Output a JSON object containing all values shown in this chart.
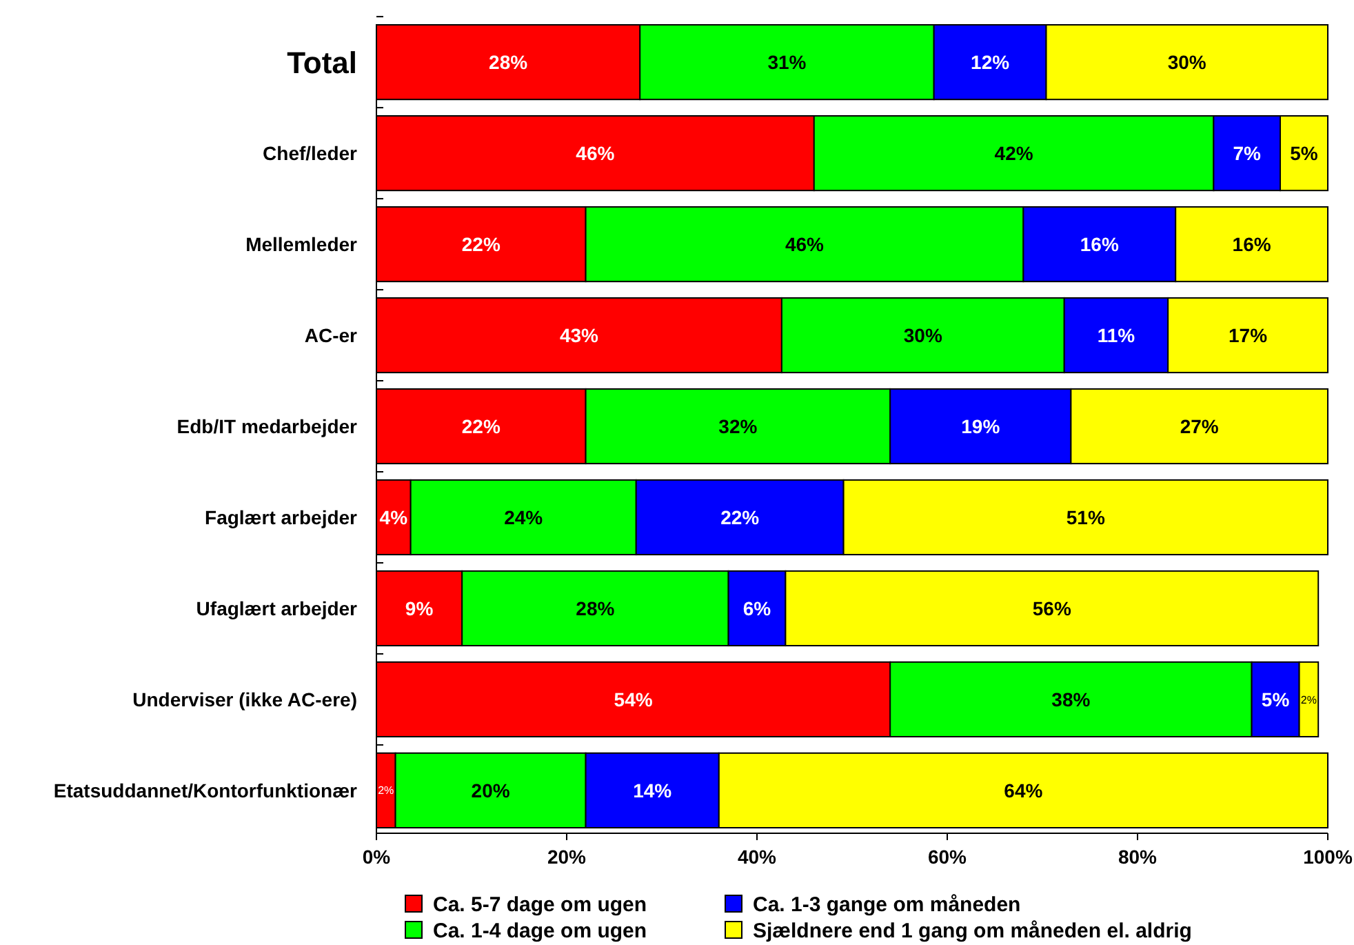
{
  "chart_data": {
    "type": "bar",
    "orientation": "horizontal",
    "stacked": true,
    "categories": [
      "Total",
      "Chef/leder",
      "Mellemleder",
      "AC-er",
      "Edb/IT medarbejder",
      "Faglært arbejder",
      "Ufaglært arbejder",
      "Underviser (ikke AC-ere)",
      "Etatsuddannet/Kontorfunktionær"
    ],
    "series": [
      {
        "name": "Ca. 5-7 dage om ugen",
        "color": "#ff0000",
        "values": [
          27.7,
          46,
          22,
          42.6,
          22,
          3.6,
          9,
          54,
          2
        ],
        "value_labels": [
          "28%",
          "46%",
          "22%",
          "43%",
          "22%",
          "4%",
          "9%",
          "54%",
          "2%"
        ]
      },
      {
        "name": "Ca. 1-4 dage om ugen",
        "color": "#00ff00",
        "values": [
          30.9,
          42,
          46,
          29.7,
          32,
          23.7,
          28,
          38,
          20
        ],
        "value_labels": [
          "31%",
          "42%",
          "46%",
          "30%",
          "32%",
          "24%",
          "28%",
          "38%",
          "20%"
        ]
      },
      {
        "name": "Ca. 1-3 gange om måneden",
        "color": "#0000ff",
        "values": [
          11.8,
          7,
          16,
          10.9,
          19,
          21.8,
          6,
          5,
          14
        ],
        "value_labels": [
          "12%",
          "7%",
          "16%",
          "11%",
          "19%",
          "22%",
          "6%",
          "5%",
          "14%"
        ]
      },
      {
        "name": "Sjældnere end 1 gang om måneden el. aldrig",
        "color": "#ffff00",
        "values": [
          29.6,
          5,
          16,
          16.8,
          27,
          50.9,
          56,
          2,
          64
        ],
        "value_labels": [
          "30%",
          "5%",
          "16%",
          "17%",
          "27%",
          "51%",
          "56%",
          "2%",
          "64%"
        ]
      }
    ],
    "xlim": [
      0,
      100
    ],
    "xticks": [
      {
        "value": 0,
        "label": "0%"
      },
      {
        "value": 20,
        "label": "20%"
      },
      {
        "value": 40,
        "label": "40%"
      },
      {
        "value": 60,
        "label": "60%"
      },
      {
        "value": 80,
        "label": "80%"
      },
      {
        "value": 100,
        "label": "100%"
      }
    ],
    "legend": "bottom"
  }
}
